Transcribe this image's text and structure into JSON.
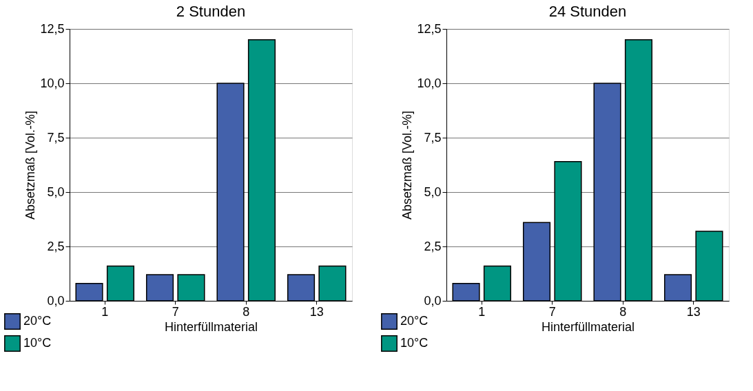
{
  "chart_data": [
    {
      "type": "bar",
      "title": "2 Stunden",
      "xlabel": "Hinterfüllmaterial",
      "ylabel": "Absetzmaß [Vol.-%]",
      "categories": [
        "1",
        "7",
        "8",
        "13"
      ],
      "series": [
        {
          "name": "20°C",
          "color": "#4361ab",
          "values": [
            0.8,
            1.2,
            10,
            1.2
          ]
        },
        {
          "name": "10°C",
          "color": "#009682",
          "values": [
            1.6,
            1.2,
            12,
            1.6
          ]
        }
      ],
      "ylim": [
        0,
        12.5
      ],
      "yticks": [
        {
          "value": 0,
          "label": "0,0"
        },
        {
          "value": 2.5,
          "label": "2,5"
        },
        {
          "value": 5,
          "label": "5,0"
        },
        {
          "value": 7.5,
          "label": "7,5"
        },
        {
          "value": 10,
          "label": "10,0"
        },
        {
          "value": 12.5,
          "label": "12,5"
        }
      ],
      "grid": "y",
      "legend": "bottom left"
    },
    {
      "type": "bar",
      "title": "24 Stunden",
      "xlabel": "Hinterfüllmaterial",
      "ylabel": "Absetzmaß [Vol.-%]",
      "categories": [
        "1",
        "7",
        "8",
        "13"
      ],
      "series": [
        {
          "name": "20°C",
          "color": "#4361ab",
          "values": [
            0.8,
            3.6,
            10,
            1.2
          ]
        },
        {
          "name": "10°C",
          "color": "#009682",
          "values": [
            1.6,
            6.4,
            12,
            3.2
          ]
        }
      ],
      "ylim": [
        0,
        12.5
      ],
      "yticks": [
        {
          "value": 0,
          "label": "0,0"
        },
        {
          "value": 2.5,
          "label": "2,5"
        },
        {
          "value": 5,
          "label": "5,0"
        },
        {
          "value": 7.5,
          "label": "7,5"
        },
        {
          "value": 10,
          "label": "10,0"
        },
        {
          "value": 12.5,
          "label": "12,5"
        }
      ],
      "grid": "y",
      "legend": "bottom left"
    }
  ]
}
